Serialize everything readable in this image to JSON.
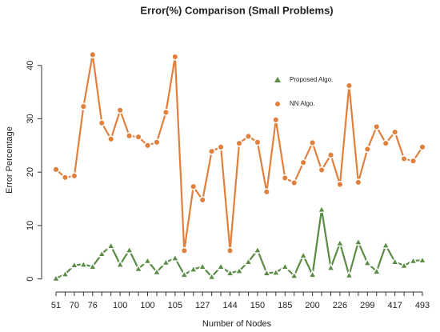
{
  "chart_data": {
    "type": "line",
    "title": "Error(%) Comparison (Small Problems)",
    "x_label": "Number of Nodes",
    "y_label": "Error Percentage",
    "categories": [
      "51",
      null,
      "70",
      null,
      "76",
      null,
      null,
      "100",
      null,
      null,
      "100",
      null,
      null,
      "105",
      null,
      null,
      "127",
      null,
      null,
      "144",
      null,
      null,
      "150",
      null,
      null,
      "185",
      null,
      null,
      "200",
      null,
      null,
      "226",
      null,
      null,
      "299",
      null,
      null,
      "417",
      null,
      null,
      "493"
    ],
    "series": [
      {
        "name": "Proposed Algo.",
        "color": "#5a8c45",
        "marker": "triangle",
        "values": [
          0.1,
          0.9,
          2.6,
          2.7,
          2.3,
          4.7,
          6.2,
          2.7,
          5.4,
          1.9,
          3.4,
          1.3,
          3.1,
          3.9,
          0.8,
          1.8,
          2.3,
          0.4,
          2.3,
          1.1,
          1.5,
          3.2,
          5.4,
          1.1,
          1.2,
          2.3,
          0.6,
          4.4,
          0.8,
          13,
          2.1,
          6.7,
          0.7,
          6.9,
          3.0,
          1.4,
          6.3,
          3.2,
          2.5,
          3.4,
          3.5
        ]
      },
      {
        "name": "NN Algo.",
        "color": "#e0803c",
        "marker": "circle",
        "values": [
          20.5,
          19,
          19.3,
          32.3,
          42,
          29.2,
          26.2,
          31.6,
          26.8,
          26.6,
          25,
          25.6,
          31.2,
          41.6,
          5.3,
          17.3,
          14.8,
          23.9,
          24.7,
          5.3,
          25.4,
          26.7,
          25.6,
          16.3,
          29.8,
          18.9,
          18,
          21.8,
          25.5,
          20.4,
          23.2,
          17.7,
          36.2,
          18.1,
          24.3,
          28.5,
          25.4,
          27.5,
          22.5,
          22.1,
          24.7
        ]
      }
    ],
    "ylim": [
      -1.7,
      43.7
    ],
    "yticks": [
      0,
      10,
      20,
      30,
      40
    ],
    "legend": "top"
  }
}
